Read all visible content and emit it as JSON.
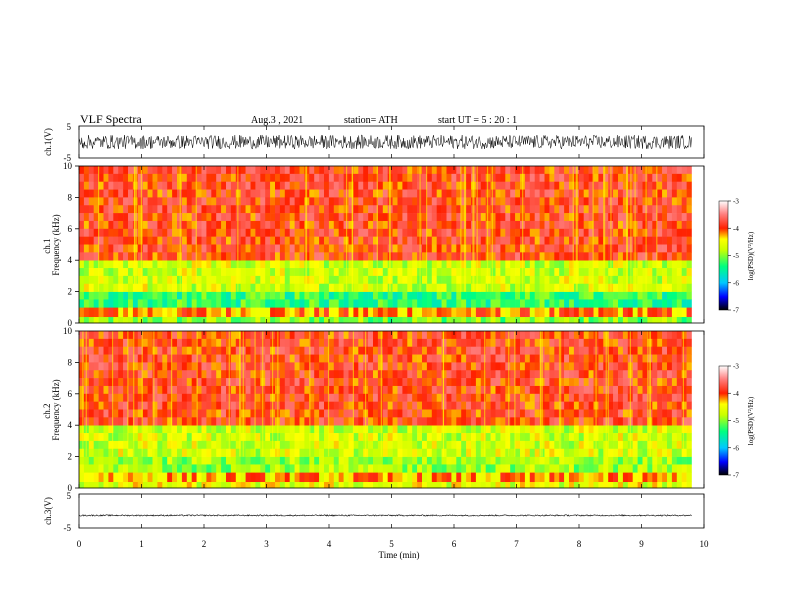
{
  "header": {
    "title": "VLF  Spectra",
    "date": "Aug.3  , 2021",
    "station": "station= ATH",
    "start_ut": "start  UT  =    5  : 20 : 1"
  },
  "chart_data": [
    {
      "type": "line",
      "name": "ch1-waveform",
      "ylabel": "ch.1(V)",
      "ylim": [
        -5,
        5
      ],
      "yticks": [
        "5",
        "-5"
      ],
      "x_range_min": [
        0,
        9.8
      ],
      "amplitude_v": 2.2
    },
    {
      "type": "heatmap",
      "name": "ch1-spectrogram",
      "ylabel": "ch.1\nFrequency  (kHz)",
      "ylabel_lines": [
        "ch.1",
        "Frequency  (kHz)"
      ],
      "ylim": [
        0,
        10
      ],
      "yticks": [
        "0",
        "2",
        "4",
        "6",
        "8",
        "10"
      ],
      "x_range_min": [
        0,
        9.8
      ],
      "colorbar": {
        "label": "log(PSD)(V²/Hz)",
        "range": [
          -7,
          -3
        ],
        "ticks": [
          "-3",
          "-4",
          "-5",
          "-6",
          "-7"
        ]
      },
      "bands": [
        {
          "from_khz": 0,
          "to_khz": 0.4,
          "level": -5.0
        },
        {
          "from_khz": 0.4,
          "to_khz": 1.0,
          "level": -4.2
        },
        {
          "from_khz": 1.0,
          "to_khz": 2.0,
          "level": -5.3
        },
        {
          "from_khz": 2.0,
          "to_khz": 4.0,
          "level": -4.7
        },
        {
          "from_khz": 4.0,
          "to_khz": 10.0,
          "level": -3.9
        }
      ]
    },
    {
      "type": "heatmap",
      "name": "ch2-spectrogram",
      "ylabel_lines": [
        "ch.2",
        "Frequency  (kHz)"
      ],
      "ylim": [
        0,
        10
      ],
      "yticks": [
        "0",
        "2",
        "4",
        "6",
        "8",
        "10"
      ],
      "x_range_min": [
        0,
        9.8
      ],
      "colorbar": {
        "label": "log(PSD)(V²/Hz)",
        "range": [
          -7,
          -3
        ],
        "ticks": [
          "-3",
          "-4",
          "-5",
          "-6",
          "-7"
        ]
      },
      "bands": [
        {
          "from_khz": 0,
          "to_khz": 0.4,
          "level": -4.6
        },
        {
          "from_khz": 0.4,
          "to_khz": 1.0,
          "level": -4.3
        },
        {
          "from_khz": 1.0,
          "to_khz": 2.0,
          "level": -4.9
        },
        {
          "from_khz": 2.0,
          "to_khz": 4.0,
          "level": -4.7
        },
        {
          "from_khz": 4.0,
          "to_khz": 10.0,
          "level": -3.9
        }
      ]
    },
    {
      "type": "line",
      "name": "ch3-waveform",
      "ylabel": "ch.3(V)",
      "ylim": [
        -5,
        5
      ],
      "yticks": [
        "5",
        "-5"
      ],
      "x_range_min": [
        0,
        9.8
      ],
      "amplitude_v": 0.2,
      "offset_v": -1.3
    }
  ],
  "xaxis": {
    "label": "Time  (min)",
    "xlim": [
      0,
      10
    ],
    "ticks": [
      "0",
      "1",
      "2",
      "3",
      "4",
      "5",
      "6",
      "7",
      "8",
      "9",
      "10"
    ]
  }
}
